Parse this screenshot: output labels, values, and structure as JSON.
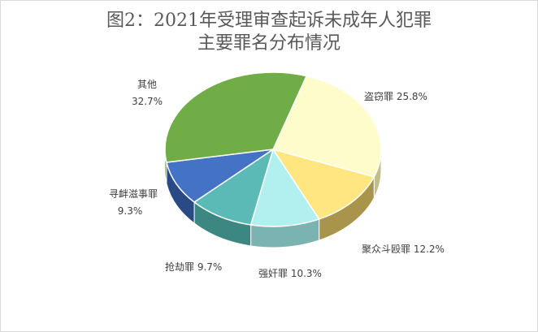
{
  "chart_data": {
    "type": "pie",
    "title_line1": "图2：2021年受理审查起诉未成年人犯罪",
    "title_line2": "主要罪名分布情况",
    "slices": [
      {
        "label": "盗窃罪",
        "value": 25.8,
        "display": "盗窃罪 25.8%",
        "color": "#FFFCCC",
        "side": "#C2BE8A"
      },
      {
        "label": "聚众斗殴罪",
        "value": 12.2,
        "display": "聚众斗殴罪 12.2%",
        "color": "#FFE681",
        "side": "#A8944A"
      },
      {
        "label": "强奸罪",
        "value": 10.3,
        "display": "强奸罪 10.3%",
        "color": "#B2F0F0",
        "side": "#7BB3B3"
      },
      {
        "label": "抢劫罪",
        "value": 9.7,
        "display": "抢劫罪 9.7%",
        "color": "#5BBAB5",
        "side": "#3D8782"
      },
      {
        "label": "寻衅滋事罪",
        "value": 9.3,
        "display_line1": "寻衅滋事罪",
        "display_line2": "9.3%",
        "color": "#4472C4",
        "side": "#2A4A86"
      },
      {
        "label": "其他",
        "value": 32.7,
        "display_line1": "其他",
        "display_line2": "32.7%",
        "color": "#70AD47",
        "side": "#4B7A2D"
      }
    ]
  }
}
